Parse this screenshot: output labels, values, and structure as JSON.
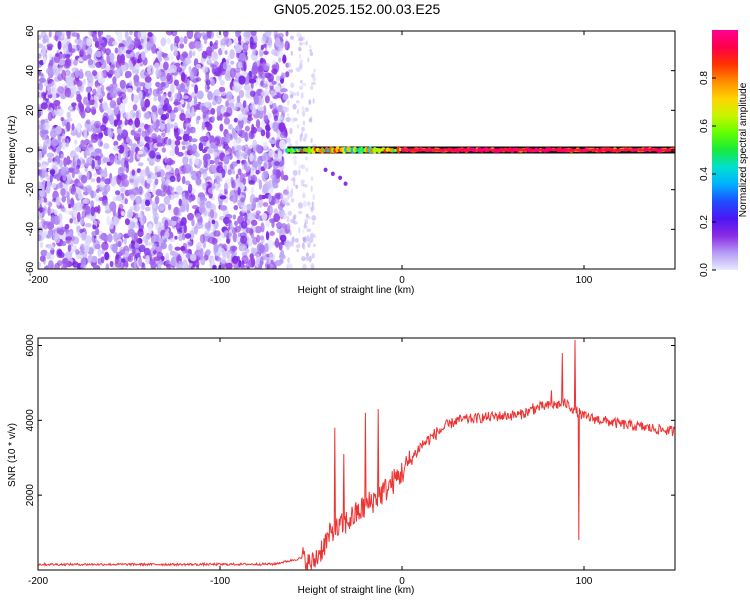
{
  "title": "GN05.2025.152.00.03.E25",
  "chart_data": [
    {
      "type": "heatmap",
      "xlabel": "Height of straight line (km)",
      "ylabel": "Frequency (Hz)",
      "xlim": [
        -200,
        150
      ],
      "ylim": [
        -60,
        60
      ],
      "x_ticks": [
        -200,
        -100,
        0,
        100
      ],
      "y_ticks": [
        -60,
        -40,
        -20,
        0,
        20,
        40,
        60
      ],
      "colorbar": {
        "label": "Normalized spectral amplitude",
        "range": [
          0.0,
          1.0
        ],
        "ticks": [
          0.0,
          0.2,
          0.4,
          0.6,
          0.8
        ],
        "tick_labels": [
          "0.0",
          "0.2",
          "0.4",
          "0.6",
          "0.8"
        ],
        "colors": [
          "#e9e9ff",
          "#b59cf5",
          "#8a2be2",
          "#4b16f5",
          "#1e4dff",
          "#00b0ff",
          "#00e0d0",
          "#19ea3c",
          "#62ff00",
          "#c8f500",
          "#ffd400",
          "#ff8c00",
          "#ff3200",
          "#ff004b",
          "#ff0090"
        ]
      },
      "description_points": {
        "noise_region_x": [
          -200,
          -63
        ],
        "sparse_region_x": [
          -63,
          -48
        ],
        "line_start_x": -63,
        "line_frequency_hz": 0,
        "line_strong_x": [
          0,
          150
        ]
      }
    },
    {
      "type": "line",
      "xlabel": "Height of straight line (km)",
      "ylabel": "SNR (10 * v/v)",
      "xlim": [
        -200,
        150
      ],
      "ylim": [
        0,
        6200
      ],
      "x_ticks": [
        -200,
        -100,
        0,
        100
      ],
      "y_ticks": [
        2000,
        4000,
        6000
      ],
      "series": [
        {
          "color": "#ee3333",
          "anchors": [
            [
              -200,
              150
            ],
            [
              -150,
              150
            ],
            [
              -100,
              150
            ],
            [
              -70,
              160
            ],
            [
              -55,
              320
            ],
            [
              -50,
              100
            ],
            [
              -40,
              900
            ],
            [
              -30,
              1300
            ],
            [
              -20,
              1700
            ],
            [
              -10,
              2100
            ],
            [
              0,
              2600
            ],
            [
              10,
              3300
            ],
            [
              20,
              3700
            ],
            [
              30,
              4000
            ],
            [
              50,
              4100
            ],
            [
              65,
              4150
            ],
            [
              75,
              4350
            ],
            [
              90,
              4450
            ],
            [
              100,
              4100
            ],
            [
              120,
              3900
            ],
            [
              150,
              3700
            ]
          ],
          "spikes": [
            [
              -37,
              3800
            ],
            [
              -32,
              3100
            ],
            [
              -20,
              4200
            ],
            [
              -13,
              4300
            ],
            [
              72,
              4450
            ],
            [
              82,
              4800
            ],
            [
              88,
              5800
            ],
            [
              95,
              6150
            ],
            [
              97,
              800
            ]
          ]
        }
      ]
    }
  ]
}
